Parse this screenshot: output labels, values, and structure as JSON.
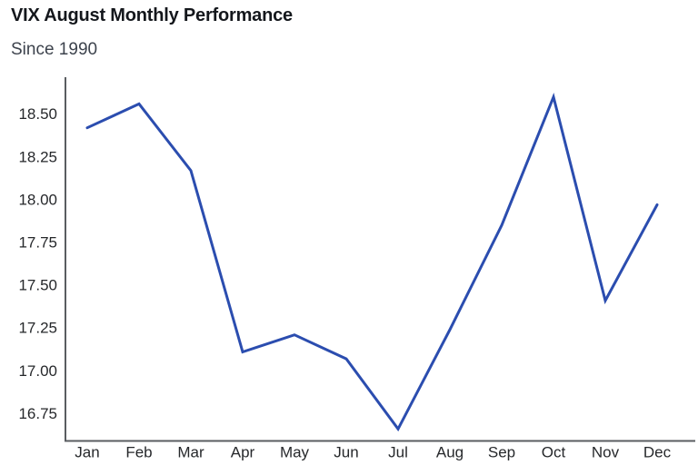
{
  "header": {
    "title": "VIX August Monthly Performance",
    "subtitle": "Since 1990"
  },
  "chart_data": {
    "type": "line",
    "title": "VIX August Monthly Performance",
    "subtitle": "Since 1990",
    "categories": [
      "Jan",
      "Feb",
      "Mar",
      "Apr",
      "May",
      "Jun",
      "Jul",
      "Aug",
      "Sep",
      "Oct",
      "Nov",
      "Dec"
    ],
    "values": [
      18.42,
      18.56,
      18.17,
      17.11,
      17.21,
      17.07,
      16.66,
      17.24,
      17.85,
      18.6,
      17.41,
      17.97
    ],
    "xlabel": "",
    "ylabel": "",
    "ylim": [
      16.59,
      18.7
    ],
    "yticks": [
      18.5,
      18.25,
      18.0,
      17.75,
      17.5,
      17.25,
      17.0,
      16.75
    ],
    "ytick_decimals": 2,
    "grid": false,
    "legend": "none",
    "colors": {
      "line": "#2b4daf",
      "axis": "#5a5d61",
      "tick_labels": "#26282b",
      "title": "#14171c",
      "subtitle": "#3d434d",
      "background": "#ffffff"
    }
  }
}
